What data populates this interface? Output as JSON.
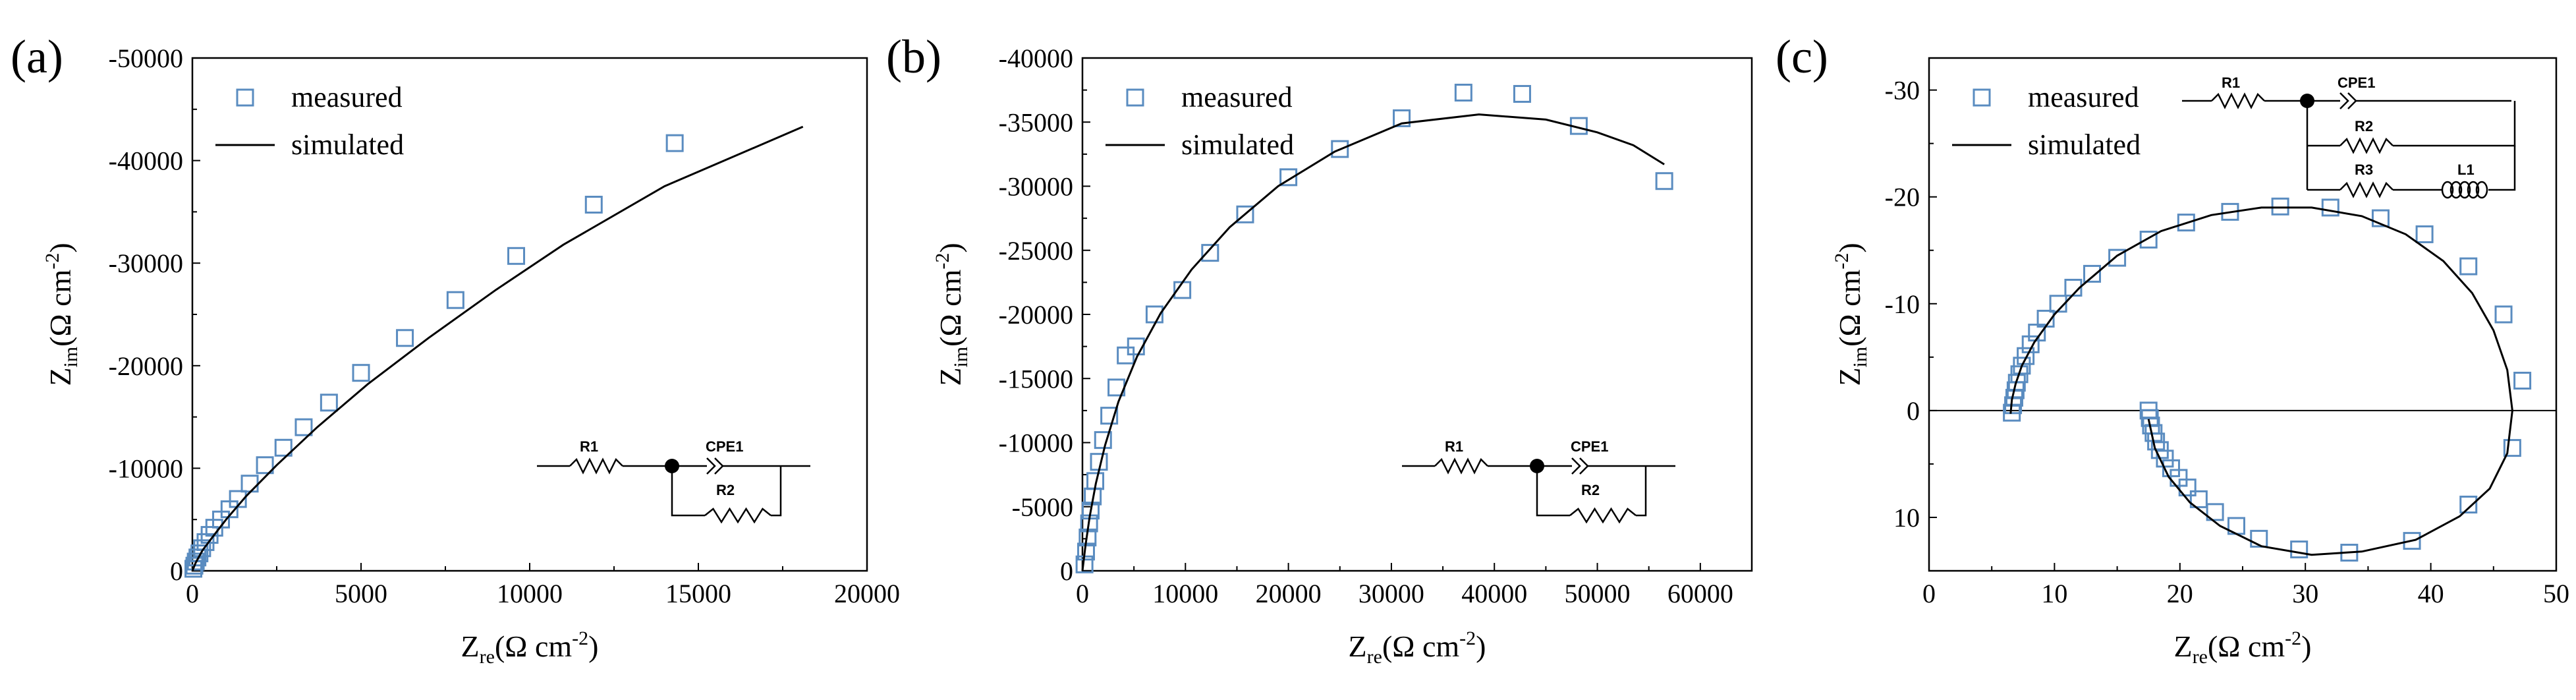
{
  "chart_data": [
    {
      "id": "a",
      "type": "scatter",
      "panel_label": "(a)",
      "xlabel": {
        "main": "Z",
        "sub": "re",
        "unit": "(Ω cm",
        "sup": "-2",
        "close": ")"
      },
      "ylabel": {
        "main": "Z",
        "sub": "im",
        "unit": "(Ω cm",
        "sup": "-2",
        "close": ")"
      },
      "xlim": [
        0,
        20000
      ],
      "ylim": [
        0,
        -50000
      ],
      "xticks": [
        0,
        5000,
        10000,
        15000,
        20000
      ],
      "yticks": [
        0,
        -10000,
        -20000,
        -30000,
        -40000,
        -50000
      ],
      "xtick_labels": [
        "0",
        "5000",
        "10000",
        "15000",
        "20000"
      ],
      "ytick_labels": [
        "0",
        "-10000",
        "-20000",
        "-30000",
        "-40000",
        "-50000"
      ],
      "legend": {
        "position": "top-left",
        "measured": "measured",
        "simulated": "simulated"
      },
      "series": [
        {
          "name": "measured",
          "style": "hollow-square",
          "color": "#5a8cc0",
          "points": [
            [
              30,
              -200
            ],
            [
              60,
              -500
            ],
            [
              100,
              -900
            ],
            [
              150,
              -1300
            ],
            [
              210,
              -1700
            ],
            [
              290,
              -2200
            ],
            [
              390,
              -2800
            ],
            [
              510,
              -3500
            ],
            [
              650,
              -4200
            ],
            [
              850,
              -5000
            ],
            [
              1100,
              -6000
            ],
            [
              1350,
              -7000
            ],
            [
              1700,
              -8500
            ],
            [
              2150,
              -10300
            ],
            [
              2700,
              -12000
            ],
            [
              3300,
              -14000
            ],
            [
              4050,
              -16400
            ],
            [
              5000,
              -19300
            ],
            [
              6300,
              -22700
            ],
            [
              7800,
              -26400
            ],
            [
              9600,
              -30700
            ],
            [
              11900,
              -35700
            ],
            [
              14300,
              -41700
            ]
          ]
        },
        {
          "name": "simulated",
          "style": "line",
          "color": "#000000",
          "points": [
            [
              0,
              0
            ],
            [
              100,
              -800
            ],
            [
              300,
              -2000
            ],
            [
              600,
              -3300
            ],
            [
              1000,
              -5000
            ],
            [
              1600,
              -7300
            ],
            [
              2500,
              -10300
            ],
            [
              3700,
              -14000
            ],
            [
              5200,
              -18200
            ],
            [
              7000,
              -22700
            ],
            [
              9000,
              -27400
            ],
            [
              11000,
              -31800
            ],
            [
              14000,
              -37500
            ],
            [
              18100,
              -43300
            ]
          ]
        }
      ],
      "circuit": {
        "labels": [
          "R1",
          "CPE1",
          "R2"
        ]
      }
    },
    {
      "id": "b",
      "type": "scatter",
      "panel_label": "(b)",
      "xlabel": {
        "main": "Z",
        "sub": "re",
        "unit": "(Ω cm",
        "sup": "-2",
        "close": ")"
      },
      "ylabel": {
        "main": "Z",
        "sub": "im",
        "unit": "(Ω cm",
        "sup": "-2",
        "close": ")"
      },
      "xlim": [
        0,
        65000
      ],
      "ylim": [
        0,
        -40000
      ],
      "xticks": [
        0,
        10000,
        20000,
        30000,
        40000,
        50000,
        60000
      ],
      "yticks": [
        0,
        -5000,
        -10000,
        -15000,
        -20000,
        -25000,
        -30000,
        -35000,
        -40000
      ],
      "xtick_labels": [
        "0",
        "10000",
        "20000",
        "30000",
        "40000",
        "50000",
        "60000"
      ],
      "ytick_labels": [
        "0",
        "-5000",
        "-10000",
        "-15000",
        "-20000",
        "-25000",
        "-30000",
        "-35000",
        "-40000"
      ],
      "legend": {
        "position": "top-left",
        "measured": "measured",
        "simulated": "simulated"
      },
      "series": [
        {
          "name": "measured",
          "style": "hollow-square",
          "color": "#5a8cc0",
          "points": [
            [
              200,
              -500
            ],
            [
              350,
              -1500
            ],
            [
              500,
              -2600
            ],
            [
              650,
              -3700
            ],
            [
              800,
              -4700
            ],
            [
              1000,
              -5800
            ],
            [
              1250,
              -7000
            ],
            [
              1600,
              -8500
            ],
            [
              2000,
              -10200
            ],
            [
              2600,
              -12100
            ],
            [
              3300,
              -14300
            ],
            [
              4200,
              -16800
            ],
            [
              5200,
              -17500
            ],
            [
              7000,
              -20000
            ],
            [
              9700,
              -21900
            ],
            [
              12400,
              -24800
            ],
            [
              15800,
              -27800
            ],
            [
              20000,
              -30700
            ],
            [
              25000,
              -32900
            ],
            [
              31000,
              -35300
            ],
            [
              37000,
              -37300
            ],
            [
              42700,
              -37200
            ],
            [
              48200,
              -34700
            ],
            [
              56500,
              -30400
            ]
          ]
        },
        {
          "name": "simulated",
          "style": "line",
          "color": "#000000",
          "points": [
            [
              0,
              0
            ],
            [
              300,
              -2000
            ],
            [
              700,
              -4200
            ],
            [
              1300,
              -6800
            ],
            [
              2200,
              -9800
            ],
            [
              3500,
              -13200
            ],
            [
              5300,
              -16700
            ],
            [
              7600,
              -20100
            ],
            [
              10600,
              -23500
            ],
            [
              14300,
              -26800
            ],
            [
              19000,
              -30000
            ],
            [
              24500,
              -32700
            ],
            [
              31000,
              -34900
            ],
            [
              38500,
              -35600
            ],
            [
              45000,
              -35200
            ],
            [
              50000,
              -34200
            ],
            [
              53500,
              -33200
            ],
            [
              56500,
              -31700
            ]
          ]
        }
      ],
      "circuit": {
        "labels": [
          "R1",
          "CPE1",
          "R2"
        ]
      }
    },
    {
      "id": "c",
      "type": "scatter",
      "panel_label": "(c)",
      "xlabel": {
        "main": "Z",
        "sub": "re",
        "unit": "(Ω cm",
        "sup": "-2",
        "close": ")"
      },
      "ylabel": {
        "main": "Z",
        "sub": "im",
        "unit": "(Ω cm",
        "sup": "-2",
        "close": ")"
      },
      "xlim": [
        0,
        50
      ],
      "ylim": [
        15,
        -33
      ],
      "xticks": [
        0,
        10,
        20,
        30,
        40,
        50
      ],
      "yticks": [
        10,
        0,
        -10,
        -20,
        -30
      ],
      "xtick_labels": [
        "0",
        "10",
        "20",
        "30",
        "40",
        "50"
      ],
      "ytick_labels": [
        "10",
        "0",
        "-10",
        "-20",
        "-30"
      ],
      "zero_line": 0,
      "legend": {
        "position": "top-left",
        "measured": "measured",
        "simulated": "simulated"
      },
      "series": [
        {
          "name": "measured",
          "style": "hollow-square",
          "color": "#5a8cc0",
          "points": [
            [
              6.6,
              0.2
            ],
            [
              6.7,
              -0.5
            ],
            [
              6.8,
              -1.2
            ],
            [
              6.9,
              -1.9
            ],
            [
              7.0,
              -2.6
            ],
            [
              7.2,
              -3.4
            ],
            [
              7.4,
              -4.2
            ],
            [
              7.7,
              -5.1
            ],
            [
              8.1,
              -6.2
            ],
            [
              8.6,
              -7.3
            ],
            [
              9.3,
              -8.6
            ],
            [
              10.3,
              -10.0
            ],
            [
              11.5,
              -11.5
            ],
            [
              13.0,
              -12.8
            ],
            [
              15.0,
              -14.3
            ],
            [
              17.5,
              -16.0
            ],
            [
              20.5,
              -17.6
            ],
            [
              24.0,
              -18.6
            ],
            [
              28.0,
              -19.1
            ],
            [
              32.0,
              -19.0
            ],
            [
              36.0,
              -18.0
            ],
            [
              39.5,
              -16.5
            ],
            [
              43.0,
              -13.5
            ],
            [
              45.8,
              -9.0
            ],
            [
              47.3,
              -2.8
            ],
            [
              46.5,
              3.5
            ],
            [
              43.0,
              8.8
            ],
            [
              38.5,
              12.2
            ],
            [
              33.5,
              13.3
            ],
            [
              29.5,
              13.0
            ],
            [
              26.3,
              12.0
            ],
            [
              24.5,
              10.8
            ],
            [
              22.8,
              9.5
            ],
            [
              21.5,
              8.3
            ],
            [
              20.6,
              7.2
            ],
            [
              19.9,
              6.3
            ],
            [
              19.3,
              5.4
            ],
            [
              18.8,
              4.5
            ],
            [
              18.4,
              3.7
            ],
            [
              18.1,
              2.9
            ],
            [
              17.9,
              2.1
            ],
            [
              17.7,
              1.4
            ],
            [
              17.6,
              0.7
            ],
            [
              17.5,
              0.0
            ]
          ]
        },
        {
          "name": "simulated",
          "style": "line",
          "color": "#000000",
          "points": [
            [
              6.5,
              0.3
            ],
            [
              6.6,
              -1.0
            ],
            [
              6.9,
              -2.5
            ],
            [
              7.4,
              -4.2
            ],
            [
              8.4,
              -6.4
            ],
            [
              10.0,
              -9.0
            ],
            [
              12.0,
              -11.5
            ],
            [
              15.0,
              -14.5
            ],
            [
              18.5,
              -16.8
            ],
            [
              22.5,
              -18.3
            ],
            [
              26.5,
              -19.0
            ],
            [
              30.5,
              -19.0
            ],
            [
              34.5,
              -18.2
            ],
            [
              38.0,
              -16.5
            ],
            [
              41.0,
              -14.0
            ],
            [
              43.3,
              -11.0
            ],
            [
              45.0,
              -7.5
            ],
            [
              46.1,
              -3.8
            ],
            [
              46.5,
              0.0
            ],
            [
              46.1,
              4.0
            ],
            [
              44.7,
              7.3
            ],
            [
              42.3,
              9.9
            ],
            [
              38.8,
              12.1
            ],
            [
              34.5,
              13.2
            ],
            [
              30.5,
              13.5
            ],
            [
              26.5,
              12.7
            ],
            [
              23.2,
              10.8
            ],
            [
              20.8,
              8.6
            ],
            [
              19.1,
              6.2
            ],
            [
              18.0,
              3.5
            ],
            [
              17.5,
              0.8
            ]
          ]
        }
      ],
      "circuit": {
        "labels": [
          "R1",
          "CPE1",
          "R2",
          "R3",
          "L1"
        ]
      }
    }
  ],
  "colors": {
    "marker": "#5a8cc0",
    "line": "#000000",
    "axis": "#000000"
  }
}
